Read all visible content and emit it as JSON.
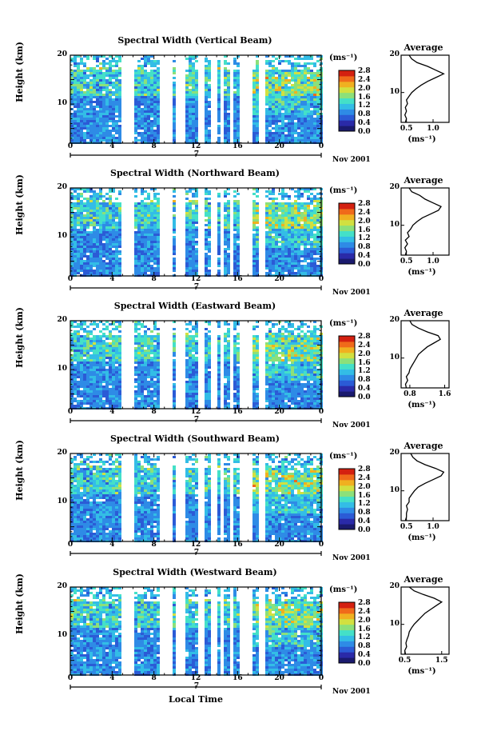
{
  "panels": [
    {
      "title": "Spectral Width (Vertical Beam)",
      "avg_xticks": [
        "0.5",
        "1.0"
      ],
      "avg_xrange": [
        0.4,
        1.3
      ],
      "avg_profile": [
        [
          2,
          0.48
        ],
        [
          3,
          0.5
        ],
        [
          4,
          0.47
        ],
        [
          5,
          0.5
        ],
        [
          6,
          0.48
        ],
        [
          7,
          0.52
        ],
        [
          8,
          0.5
        ],
        [
          9,
          0.55
        ],
        [
          10,
          0.6
        ],
        [
          11,
          0.68
        ],
        [
          12,
          0.78
        ],
        [
          13,
          0.9
        ],
        [
          14,
          1.05
        ],
        [
          15,
          1.2
        ],
        [
          16,
          1.05
        ],
        [
          17,
          0.9
        ],
        [
          18,
          0.7
        ],
        [
          19,
          0.6
        ],
        [
          20,
          0.55
        ]
      ]
    },
    {
      "title": "Spectral Width (Northward Beam)",
      "avg_xticks": [
        "0.5",
        "1.0"
      ],
      "avg_xrange": [
        0.4,
        1.3
      ],
      "avg_profile": [
        [
          2,
          0.48
        ],
        [
          3,
          0.5
        ],
        [
          4,
          0.47
        ],
        [
          5,
          0.52
        ],
        [
          6,
          0.48
        ],
        [
          7,
          0.55
        ],
        [
          8,
          0.52
        ],
        [
          9,
          0.58
        ],
        [
          10,
          0.62
        ],
        [
          11,
          0.7
        ],
        [
          12,
          0.8
        ],
        [
          13,
          0.95
        ],
        [
          14,
          1.1
        ],
        [
          15,
          1.15
        ],
        [
          16,
          1.0
        ],
        [
          17,
          0.85
        ],
        [
          18,
          0.75
        ],
        [
          19,
          0.6
        ],
        [
          20,
          0.55
        ]
      ]
    },
    {
      "title": "Spectral Width (Eastward Beam)",
      "avg_xticks": [
        "0.8",
        "1.6"
      ],
      "avg_xrange": [
        0.6,
        1.7
      ],
      "avg_profile": [
        [
          2,
          0.72
        ],
        [
          3,
          0.7
        ],
        [
          4,
          0.75
        ],
        [
          5,
          0.72
        ],
        [
          6,
          0.78
        ],
        [
          7,
          0.8
        ],
        [
          8,
          0.85
        ],
        [
          9,
          0.9
        ],
        [
          10,
          0.95
        ],
        [
          11,
          1.0
        ],
        [
          12,
          1.1
        ],
        [
          13,
          1.2
        ],
        [
          14,
          1.35
        ],
        [
          15,
          1.5
        ],
        [
          16,
          1.45
        ],
        [
          17,
          1.2
        ],
        [
          18,
          1.0
        ],
        [
          19,
          0.85
        ],
        [
          20,
          0.8
        ]
      ]
    },
    {
      "title": "Spectral Width (Southward Beam)",
      "avg_xticks": [
        "0.5",
        "1.0"
      ],
      "avg_xrange": [
        0.4,
        1.3
      ],
      "avg_profile": [
        [
          2,
          0.48
        ],
        [
          3,
          0.5
        ],
        [
          4,
          0.5
        ],
        [
          5,
          0.52
        ],
        [
          6,
          0.5
        ],
        [
          7,
          0.55
        ],
        [
          8,
          0.55
        ],
        [
          9,
          0.6
        ],
        [
          10,
          0.65
        ],
        [
          11,
          0.72
        ],
        [
          12,
          0.85
        ],
        [
          13,
          1.0
        ],
        [
          14,
          1.15
        ],
        [
          15,
          1.2
        ],
        [
          16,
          1.05
        ],
        [
          17,
          0.85
        ],
        [
          18,
          0.7
        ],
        [
          19,
          0.62
        ],
        [
          20,
          0.58
        ]
      ]
    },
    {
      "title": "Spectral Width (Westward Beam)",
      "avg_xticks": [
        "0.5",
        "1.5"
      ],
      "avg_xrange": [
        0.4,
        1.7
      ],
      "avg_profile": [
        [
          2,
          0.52
        ],
        [
          3,
          0.5
        ],
        [
          4,
          0.55
        ],
        [
          5,
          0.53
        ],
        [
          6,
          0.56
        ],
        [
          7,
          0.6
        ],
        [
          8,
          0.62
        ],
        [
          9,
          0.68
        ],
        [
          10,
          0.75
        ],
        [
          11,
          0.85
        ],
        [
          12,
          0.95
        ],
        [
          13,
          1.05
        ],
        [
          14,
          1.2
        ],
        [
          15,
          1.35
        ],
        [
          16,
          1.5
        ],
        [
          17,
          1.3
        ],
        [
          18,
          1.0
        ],
        [
          19,
          0.75
        ],
        [
          20,
          0.62
        ]
      ]
    }
  ],
  "shared": {
    "ylabel": "Height (km)",
    "yticks": [
      "20",
      "10"
    ],
    "xticks": [
      "0",
      "4",
      "8",
      "12",
      "16",
      "20",
      "0"
    ],
    "day": "7",
    "month": "Nov 2001",
    "colorbar_unit": "(ms⁻¹)",
    "colorbar_labels": [
      "2.8",
      "2.4",
      "2.0",
      "1.6",
      "1.2",
      "0.8",
      "0.4",
      "0.0"
    ],
    "avg_title": "Average",
    "avg_yticks": [
      "20",
      "10"
    ],
    "avg_unit": "(ms⁻¹)",
    "xlabel": "Local Time",
    "gap_hours": [
      [
        4.6,
        5.9
      ],
      [
        8.3,
        9.5
      ],
      [
        10.0,
        10.8
      ],
      [
        12.0,
        12.6
      ],
      [
        13.4,
        14.0
      ],
      [
        14.3,
        14.6
      ],
      [
        15.2,
        15.5
      ],
      [
        16.2,
        17.4
      ],
      [
        18.0,
        18.5
      ]
    ],
    "colormap": [
      "#1a1a6e",
      "#2a2aa8",
      "#2b5bd6",
      "#2e8be6",
      "#33bde6",
      "#44e0c8",
      "#8ce07a",
      "#d2e040",
      "#f0b020",
      "#f06a1a",
      "#d42010"
    ]
  }
}
